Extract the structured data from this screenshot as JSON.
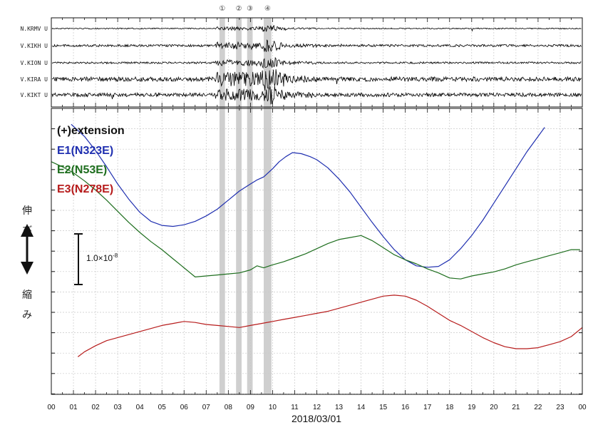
{
  "chart_data": [
    {
      "type": "line",
      "title": "",
      "stations": [
        "N.KRMV U",
        "V.KIKH U",
        "V.KION U",
        "V.KIRA U",
        "V.KIKT U"
      ],
      "events": [
        "①",
        "②",
        "③",
        "④"
      ]
    },
    {
      "type": "line",
      "xlabel": "2018/03/01",
      "ylabel": "",
      "x_ticks": [
        "00",
        "01",
        "02",
        "03",
        "04",
        "05",
        "06",
        "07",
        "08",
        "09",
        "10",
        "11",
        "12",
        "13",
        "14",
        "15",
        "16",
        "17",
        "18",
        "19",
        "20",
        "21",
        "22",
        "23",
        "00"
      ],
      "xlim": [
        0,
        24
      ],
      "grid": true,
      "legend_title": "(+)extension",
      "legend_placement": "top-left",
      "extension_label": "伸び",
      "compression_label": "縮み",
      "scale_bar_label": "1.0×10",
      "scale_bar_exponent": "-8",
      "scale_bar_value": 1e-08,
      "series": [
        {
          "name": "E1(N323E)",
          "color": "#1f2fb0",
          "x": [
            0.9,
            1.5,
            2,
            2.5,
            3,
            3.5,
            4,
            4.5,
            5,
            5.5,
            6,
            6.5,
            7,
            7.5,
            8,
            8.5,
            9,
            9.3,
            9.6,
            10,
            10.3,
            10.6,
            10.9,
            11.3,
            11.7,
            12,
            12.5,
            13,
            13.5,
            14,
            14.5,
            15,
            15.5,
            16,
            16.5,
            17,
            17.5,
            18,
            18.5,
            19,
            19.5,
            20,
            20.5,
            21,
            21.5,
            22,
            22.3
          ],
          "y": [
            4.15,
            3.55,
            2.85,
            2.05,
            1.2,
            0.45,
            -0.2,
            -0.65,
            -0.85,
            -0.9,
            -0.82,
            -0.65,
            -0.38,
            -0.05,
            0.4,
            0.85,
            1.2,
            1.4,
            1.55,
            1.95,
            2.3,
            2.55,
            2.75,
            2.7,
            2.55,
            2.4,
            2.0,
            1.45,
            0.8,
            0.05,
            -0.7,
            -1.4,
            -2.05,
            -2.55,
            -2.85,
            -2.92,
            -2.88,
            -2.55,
            -2.0,
            -1.35,
            -0.6,
            0.25,
            1.1,
            1.95,
            2.8,
            3.55,
            4.0
          ]
        },
        {
          "name": "E2(N53E)",
          "color": "#1e6e1e",
          "x": [
            0,
            0.5,
            1,
            1.5,
            2,
            2.5,
            3,
            3.5,
            4,
            4.5,
            5,
            5.5,
            6,
            6.5,
            7,
            7.5,
            8,
            8.5,
            9,
            9.3,
            9.6,
            10,
            10.5,
            11,
            11.5,
            12,
            12.5,
            13,
            13.5,
            14,
            14.5,
            15,
            15.5,
            16,
            16.5,
            17,
            17.5,
            18,
            18.5,
            19,
            19.5,
            20,
            20.5,
            21,
            21.5,
            22,
            22.5,
            23,
            23.5,
            23.9
          ],
          "y": [
            2.3,
            2.05,
            1.75,
            1.35,
            0.9,
            0.4,
            -0.15,
            -0.7,
            -1.2,
            -1.65,
            -2.05,
            -2.5,
            -2.95,
            -3.4,
            -3.35,
            -3.3,
            -3.25,
            -3.2,
            -3.05,
            -2.85,
            -2.95,
            -2.8,
            -2.65,
            -2.45,
            -2.25,
            -2.0,
            -1.75,
            -1.55,
            -1.45,
            -1.35,
            -1.6,
            -1.95,
            -2.3,
            -2.55,
            -2.75,
            -3.0,
            -3.2,
            -3.45,
            -3.5,
            -3.35,
            -3.25,
            -3.15,
            -3.0,
            -2.8,
            -2.65,
            -2.5,
            -2.35,
            -2.2,
            -2.05,
            -2.05
          ]
        },
        {
          "name": "E3(N278E)",
          "color": "#b71c1c",
          "x": [
            1.2,
            1.5,
            2,
            2.5,
            3,
            3.5,
            4,
            4.5,
            5,
            5.5,
            6,
            6.5,
            7,
            7.5,
            8,
            8.5,
            9,
            9.5,
            10,
            10.5,
            11,
            11.5,
            12,
            12.5,
            13,
            13.5,
            14,
            14.5,
            15,
            15.5,
            16,
            16.5,
            17,
            17.5,
            18,
            18.5,
            19,
            19.5,
            20,
            20.5,
            21,
            21.5,
            22,
            22.5,
            23,
            23.5,
            24
          ],
          "y": [
            -7.35,
            -7.1,
            -6.8,
            -6.55,
            -6.4,
            -6.25,
            -6.1,
            -5.95,
            -5.8,
            -5.7,
            -5.6,
            -5.65,
            -5.75,
            -5.8,
            -5.85,
            -5.9,
            -5.8,
            -5.7,
            -5.6,
            -5.5,
            -5.4,
            -5.3,
            -5.2,
            -5.1,
            -4.95,
            -4.8,
            -4.65,
            -4.5,
            -4.35,
            -4.3,
            -4.35,
            -4.55,
            -4.85,
            -5.2,
            -5.55,
            -5.8,
            -6.1,
            -6.4,
            -6.65,
            -6.85,
            -6.95,
            -6.95,
            -6.9,
            -6.75,
            -6.6,
            -6.35,
            -5.9
          ]
        }
      ]
    }
  ],
  "colors": {
    "event_band": "#cfcfcf",
    "grid": "#c8c8c8",
    "axis": "#111111",
    "trace": "#000000"
  }
}
